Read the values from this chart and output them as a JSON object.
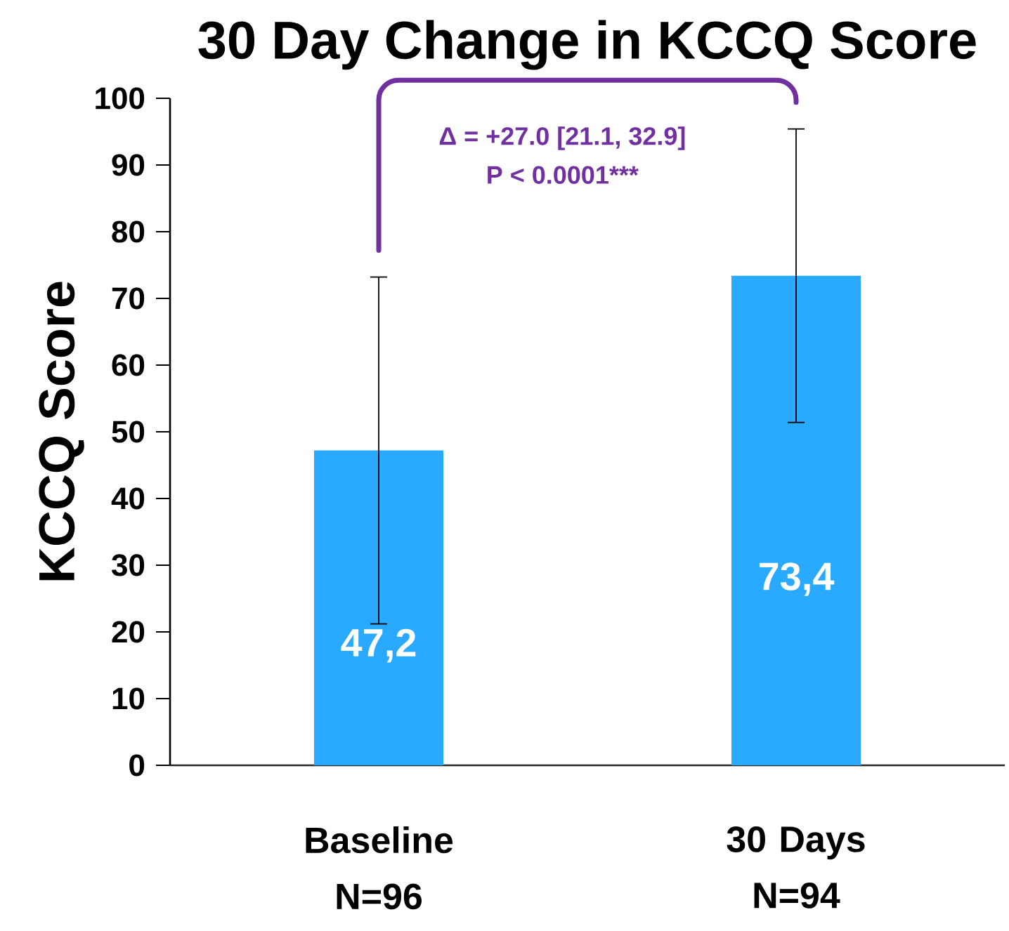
{
  "chart_data": {
    "type": "bar",
    "title": "30 Day Change in KCCQ Score",
    "ylabel": "KCCQ Score",
    "categories": [
      "Baseline N=96",
      "30 Days N=94"
    ],
    "values": [
      47.2,
      73.4
    ],
    "errors": [
      26,
      22
    ],
    "value_labels": [
      "47,2",
      "73,4"
    ],
    "color": "#29a9ff",
    "ylim": [
      0,
      100
    ],
    "yticks": [
      0,
      10,
      20,
      30,
      40,
      50,
      60,
      70,
      80,
      90,
      100
    ],
    "annotations": [
      "Δ = +27.0 [21.1, 32.9]",
      "P < 0.0001***"
    ]
  }
}
